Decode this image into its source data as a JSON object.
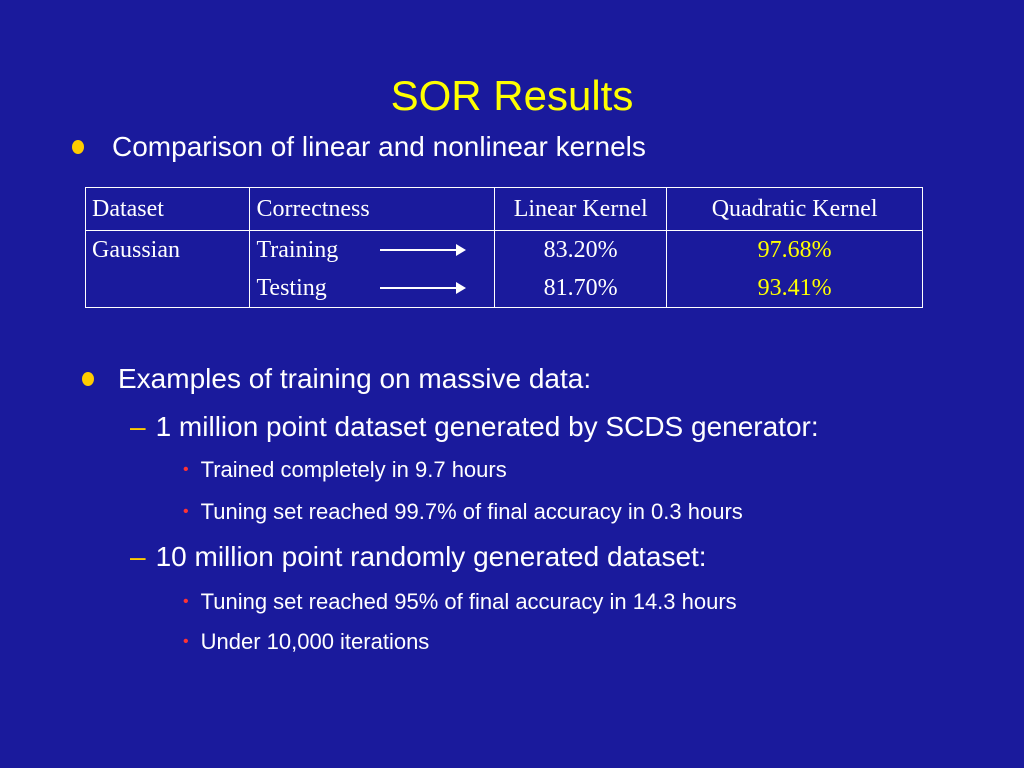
{
  "title": "SOR Results",
  "bullet1": "Comparison of linear and nonlinear kernels",
  "table": {
    "headers": [
      "Dataset",
      "Correctness",
      "Linear Kernel",
      "Quadratic Kernel"
    ],
    "dataset": "Gaussian",
    "rows": [
      {
        "label": "Training",
        "linear": "83.20%",
        "quadratic": "97.68%"
      },
      {
        "label": "Testing",
        "linear": "81.70%",
        "quadratic": "93.41%"
      }
    ],
    "highlight_color": "#ffff00"
  },
  "bullet2": "Examples of training on massive data:",
  "sub1": {
    "text": "1 million point dataset generated by SCDS generator:",
    "items": [
      "Trained completely in 9.7 hours",
      "Tuning set reached 99.7% of final accuracy in 0.3 hours"
    ]
  },
  "sub2": {
    "text": "10 million point randomly generated dataset:",
    "items": [
      "Tuning set reached 95% of final accuracy in 14.3 hours",
      "Under 10,000 iterations"
    ]
  },
  "colors": {
    "background": "#1a1a9c",
    "title": "#ffff00",
    "bullet": "#ffcc00",
    "small_bullet": "#ff3333"
  }
}
